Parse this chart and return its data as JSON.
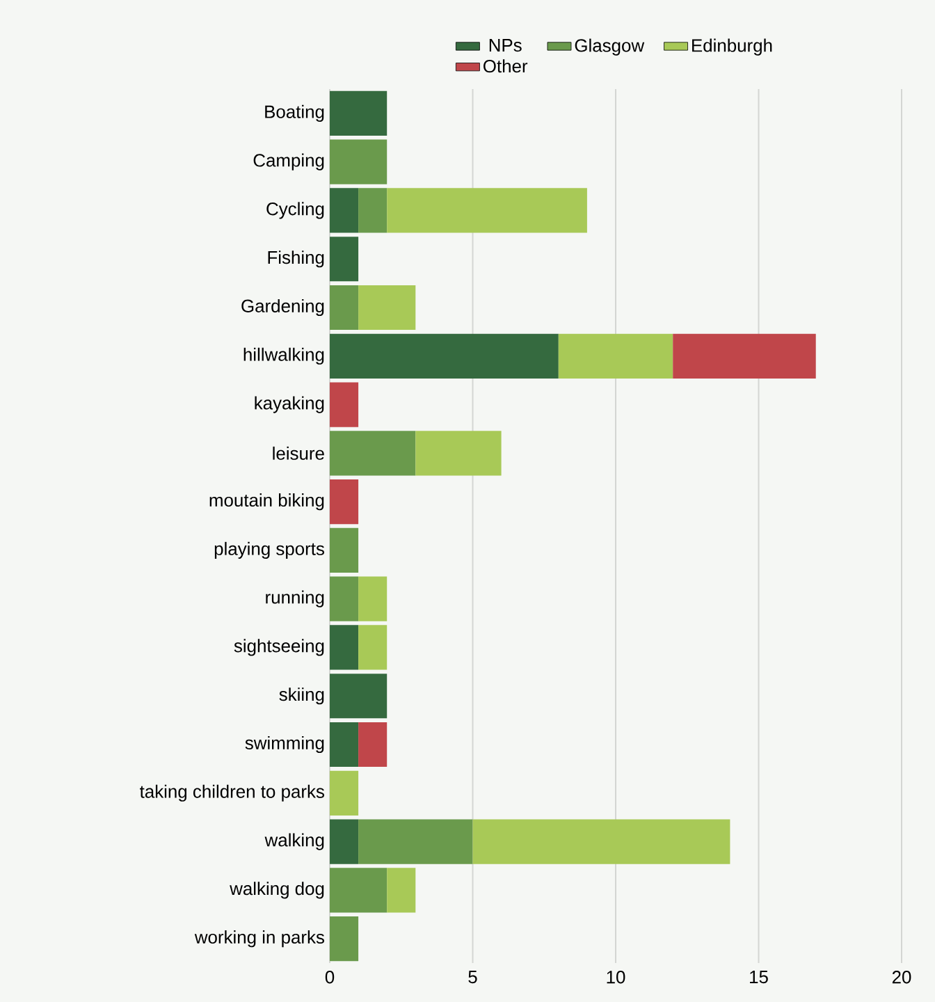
{
  "chart_data": {
    "type": "bar",
    "orientation": "horizontal",
    "stacked": true,
    "categories": [
      "Boating",
      "Camping",
      "Cycling",
      "Fishing",
      "Gardening",
      "hillwalking",
      "kayaking",
      "leisure",
      "moutain biking",
      "playing sports",
      "running",
      "sightseeing",
      "skiing",
      "swimming",
      "taking children to parks",
      "walking",
      "walking dog",
      "working in parks"
    ],
    "series": [
      {
        "name": "NPs",
        "color": "#356a3f",
        "values": [
          2,
          null,
          1,
          1,
          null,
          8,
          null,
          null,
          null,
          null,
          null,
          1,
          2,
          1,
          null,
          1,
          null,
          null
        ]
      },
      {
        "name": "Glasgow",
        "color": "#6a9a4c",
        "values": [
          null,
          2,
          1,
          null,
          1,
          null,
          null,
          3,
          null,
          1,
          1,
          null,
          null,
          null,
          null,
          4,
          2,
          1
        ]
      },
      {
        "name": "Edinburgh",
        "color": "#a8c957",
        "values": [
          null,
          null,
          7,
          null,
          2,
          4,
          null,
          3,
          null,
          null,
          1,
          1,
          null,
          null,
          1,
          9,
          1,
          null
        ]
      },
      {
        "name": "Other",
        "color": "#c0464a",
        "values": [
          null,
          null,
          null,
          null,
          null,
          5,
          1,
          null,
          1,
          null,
          null,
          null,
          null,
          1,
          null,
          null,
          null,
          null
        ]
      }
    ],
    "xlim": [
      0,
      20
    ],
    "xticks": [
      0,
      5,
      10,
      15,
      20
    ],
    "grid": "x",
    "legend": "top"
  }
}
